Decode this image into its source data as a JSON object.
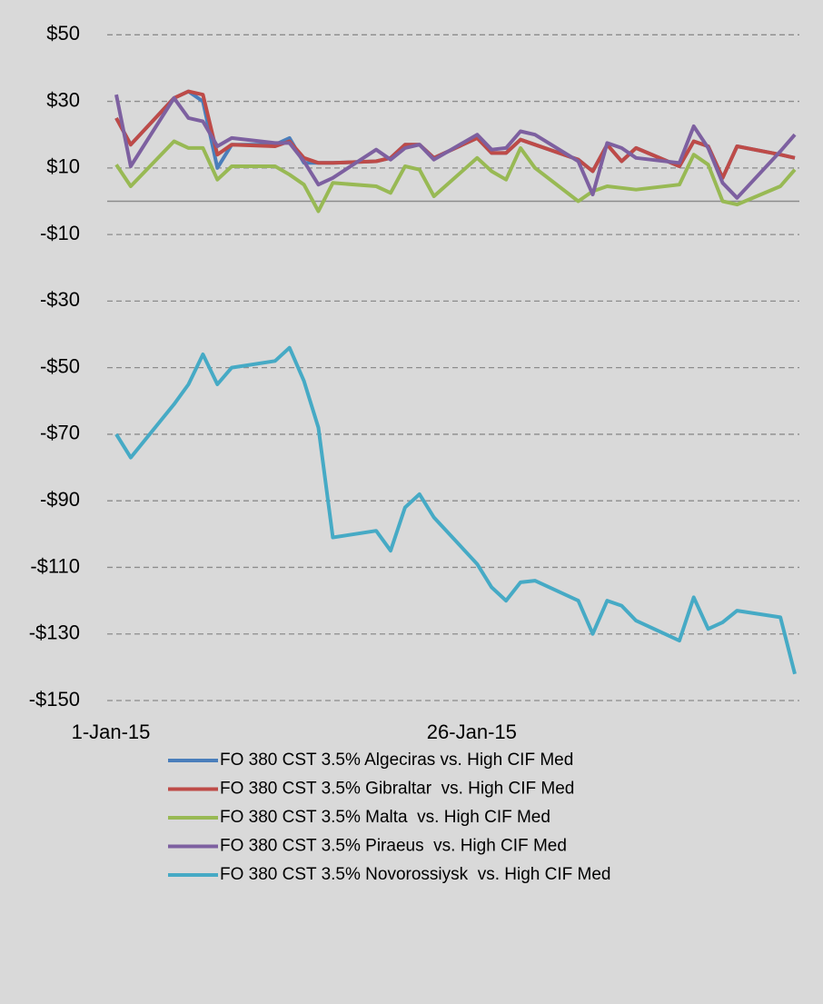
{
  "chart_data": {
    "type": "line",
    "x": [
      "2015-01-01",
      "2015-01-02",
      "2015-01-05",
      "2015-01-06",
      "2015-01-07",
      "2015-01-08",
      "2015-01-09",
      "2015-01-12",
      "2015-01-13",
      "2015-01-14",
      "2015-01-15",
      "2015-01-16",
      "2015-01-19",
      "2015-01-20",
      "2015-01-21",
      "2015-01-22",
      "2015-01-23",
      "2015-01-26",
      "2015-01-27",
      "2015-01-28",
      "2015-01-29",
      "2015-01-30",
      "2015-02-02",
      "2015-02-03",
      "2015-02-04",
      "2015-02-05",
      "2015-02-06",
      "2015-02-09",
      "2015-02-10",
      "2015-02-11",
      "2015-02-12",
      "2015-02-13",
      "2015-02-16",
      "2015-02-17"
    ],
    "series": [
      {
        "name": "FO 380 CST 3.5% Algeciras vs. High CIF Med",
        "color": "#4a7ebb",
        "values": [
          25,
          17,
          31,
          33,
          30,
          10,
          17,
          17,
          19,
          11.5,
          11.5,
          11.5,
          12,
          13,
          17,
          17,
          13,
          19,
          14.5,
          14.5,
          18.5,
          17,
          12.5,
          9,
          17,
          12,
          16,
          10.5,
          18,
          16.5,
          7,
          16.5,
          14,
          13
        ]
      },
      {
        "name": "FO 380 CST 3.5% Gibraltar  vs. High CIF Med",
        "color": "#be4b48",
        "values": [
          25,
          17,
          31,
          33,
          32,
          14,
          17,
          16.5,
          18,
          13,
          11.5,
          11.5,
          12,
          13,
          17,
          17,
          13,
          19,
          14.5,
          14.5,
          18.5,
          17,
          12.5,
          9,
          17,
          12,
          16,
          10.5,
          18,
          16.5,
          7,
          16.5,
          14,
          13
        ]
      },
      {
        "name": "FO 380 CST 3.5% Malta  vs. High CIF Med",
        "color": "#98b954",
        "values": [
          11,
          4.5,
          18,
          16,
          16,
          6.5,
          10.5,
          10.5,
          8,
          5,
          -3,
          5.5,
          4.5,
          2.5,
          10.5,
          9.5,
          1.5,
          13,
          9,
          6.5,
          16,
          10,
          0,
          3,
          4.5,
          4,
          3.5,
          5,
          14,
          11,
          0,
          -1,
          4.5,
          9.5
        ]
      },
      {
        "name": "FO 380 CST 3.5% Piraeus  vs. High CIF Med",
        "color": "#7d60a0",
        "values": [
          32,
          10.5,
          31,
          25,
          24,
          16.5,
          19,
          17.5,
          17.5,
          12,
          5,
          7,
          15.5,
          12.5,
          16,
          17,
          12.5,
          20,
          15.5,
          16,
          21,
          20,
          12,
          2,
          17.5,
          16,
          13,
          11.5,
          22.5,
          16,
          5.5,
          1,
          15,
          20
        ]
      },
      {
        "name": "FO 380 CST 3.5% Novorossiysk  vs. High CIF Med",
        "color": "#46aac5",
        "values": [
          -70,
          -77,
          -61,
          -55,
          -46,
          -55,
          -50,
          -48,
          -44,
          -54,
          -68,
          -101,
          -99,
          -105,
          -92,
          -88,
          -95,
          -109,
          -116,
          -120,
          -114.5,
          -114,
          -120,
          -130,
          -120,
          -121.5,
          -126,
          -132,
          -119,
          -128.5,
          -126.5,
          -123,
          -125,
          -142
        ]
      }
    ],
    "xlim": [
      "2015-01-01",
      "2015-02-17"
    ],
    "xticks": [
      {
        "value": "2015-01-01",
        "label": "1-Jan-15"
      },
      {
        "value": "2015-01-26",
        "label": "26-Jan-15"
      }
    ],
    "ylim": [
      -150,
      50
    ],
    "yticks": [
      {
        "value": -150,
        "label": "-$150"
      },
      {
        "value": -130,
        "label": "-$130"
      },
      {
        "value": -110,
        "label": "-$110"
      },
      {
        "value": -90,
        "label": "-$90"
      },
      {
        "value": -70,
        "label": "-$70"
      },
      {
        "value": -50,
        "label": "-$50"
      },
      {
        "value": -30,
        "label": "-$30"
      },
      {
        "value": -10,
        "label": "-$10"
      },
      {
        "value": 10,
        "label": "$10"
      },
      {
        "value": 30,
        "label": "$30"
      },
      {
        "value": 50,
        "label": "$50"
      }
    ],
    "grid": true,
    "legend": "bottom"
  }
}
